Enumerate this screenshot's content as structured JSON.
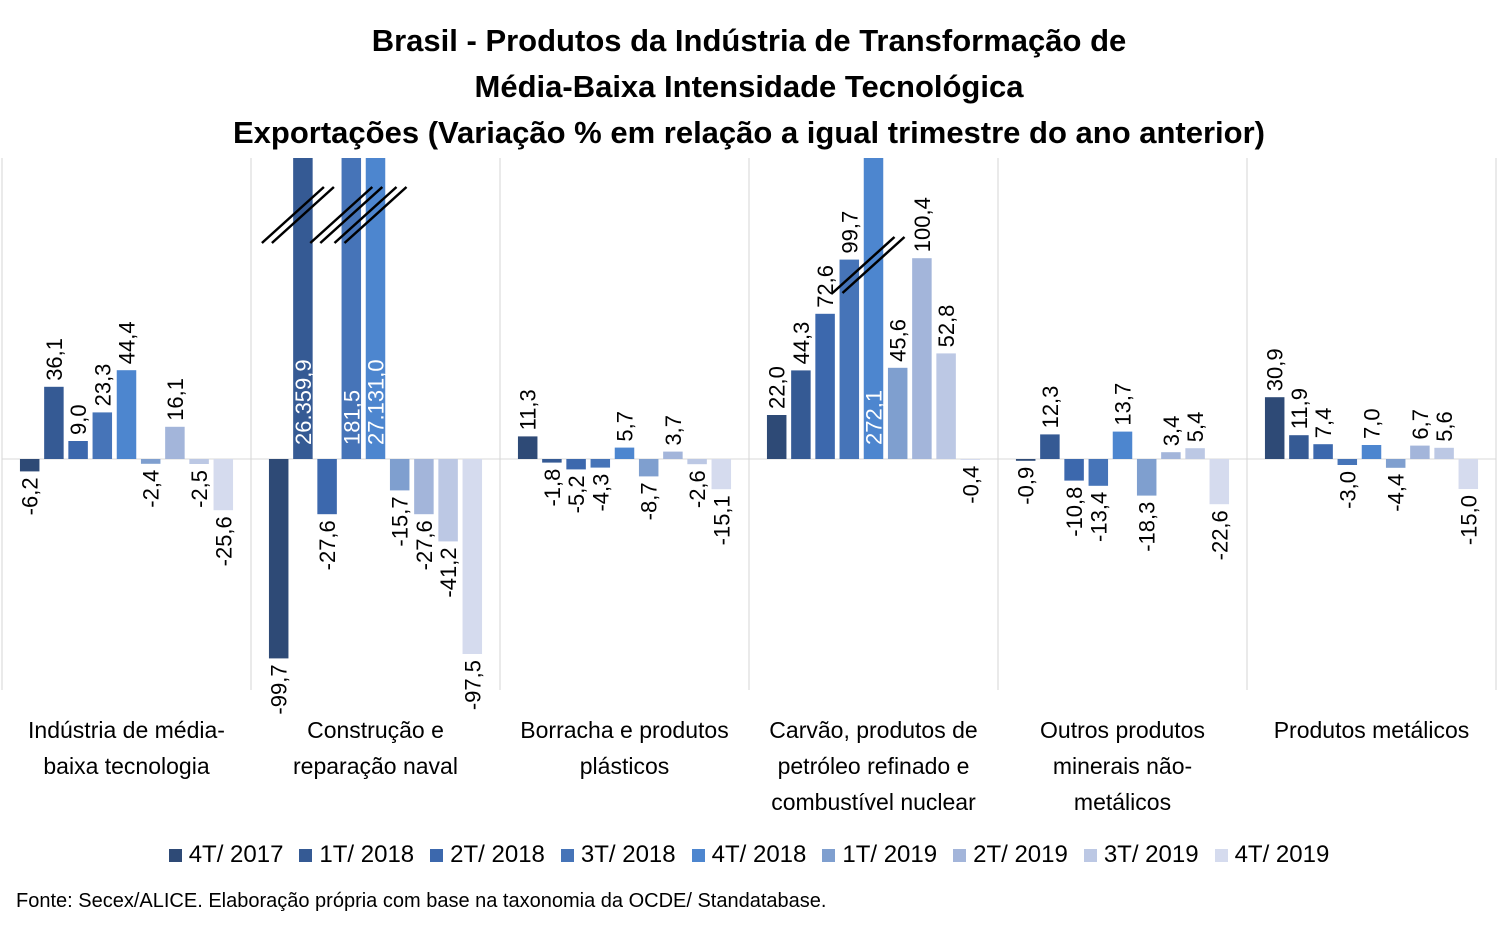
{
  "title_lines": [
    "Brasil - Produtos da Indústria de Transformação de",
    "Média-Baixa Intensidade Tecnológica",
    "Exportações (Variação % em relação a igual trimestre do ano anterior)"
  ],
  "source": "Fonte: Secex/ALICE. Elaboração própria com base na taxonomia da OCDE/ Standatabase.",
  "chart_data": {
    "type": "bar",
    "title": "Brasil - Produtos da Indústria de Transformação de Média-Baixa Intensidade Tecnológica Exportações (Variação % em relação a igual trimestre do ano anterior)",
    "categories": [
      [
        "Indústria de média-",
        "baixa tecnologia"
      ],
      [
        "Construção e",
        "reparação naval"
      ],
      [
        "Borracha e produtos",
        "plásticos"
      ],
      [
        "Carvão, produtos de",
        "petróleo refinado e",
        "combustível nuclear"
      ],
      [
        "Outros produtos",
        "minerais não-",
        "metálicos"
      ],
      [
        "Produtos metálicos"
      ]
    ],
    "series": [
      {
        "name": "4T/ 2017",
        "color": "#2e4a76",
        "values": [
          -6.2,
          -99.7,
          11.3,
          22.0,
          -0.9,
          30.9
        ],
        "labels": [
          "-6,2",
          "-99,7",
          "11,3",
          "22,0",
          "-0,9",
          "30,9"
        ]
      },
      {
        "name": "1T/ 2018",
        "color": "#355a94",
        "values": [
          36.1,
          26359.9,
          -1.8,
          44.3,
          12.3,
          11.9
        ],
        "labels": [
          "36,1",
          "26.359,9",
          "-1,8",
          "44,3",
          "12,3",
          "11,9"
        ]
      },
      {
        "name": "2T/ 2018",
        "color": "#3c68ad",
        "values": [
          9.0,
          -27.6,
          -5.2,
          72.6,
          -10.8,
          7.4
        ],
        "labels": [
          "9,0",
          "-27,6",
          "-5,2",
          "72,6",
          "-10,8",
          "7,4"
        ]
      },
      {
        "name": "3T/ 2018",
        "color": "#4674b8",
        "values": [
          23.3,
          181.5,
          -4.3,
          99.7,
          -13.4,
          -3.0
        ],
        "labels": [
          "23,3",
          "181,5",
          "-4,3",
          "99,7",
          "-13,4",
          "-3,0"
        ]
      },
      {
        "name": "4T/ 2018",
        "color": "#4d86cf",
        "values": [
          44.4,
          27131.0,
          5.7,
          272.1,
          13.7,
          7.0
        ],
        "labels": [
          "44,4",
          "27.131,0",
          "5,7",
          "272,1",
          "13,7",
          "7,0"
        ]
      },
      {
        "name": "1T/ 2019",
        "color": "#7f9fcf",
        "values": [
          -2.4,
          -15.7,
          -8.7,
          45.6,
          -18.3,
          -4.4
        ],
        "labels": [
          "-2,4",
          "-15,7",
          "-8,7",
          "45,6",
          "-18,3",
          "-4,4"
        ]
      },
      {
        "name": "2T/ 2019",
        "color": "#a3b5da",
        "values": [
          16.1,
          -27.6,
          3.7,
          100.4,
          3.4,
          6.7
        ],
        "labels": [
          "16,1",
          "-27,6",
          "3,7",
          "100,4",
          "3,4",
          "6,7"
        ]
      },
      {
        "name": "3T/ 2019",
        "color": "#bcc8e4",
        "values": [
          -2.5,
          -41.2,
          -2.6,
          52.8,
          5.4,
          5.6
        ],
        "labels": [
          "-2,5",
          "-41,2",
          "-2,6",
          "52,8",
          "5,4",
          "5,6"
        ]
      },
      {
        "name": "4T/ 2019",
        "color": "#d5dbee",
        "values": [
          -25.6,
          -97.5,
          -15.1,
          -0.4,
          -22.6,
          -15.0
        ],
        "labels": [
          "-25,6",
          "-97,5",
          "-15,1",
          "-0,4",
          "-22,6",
          "-15,0"
        ]
      }
    ],
    "ylim": [
      -110,
      120
    ],
    "axis_break": true,
    "legend_position": "bottom",
    "grid": false
  }
}
